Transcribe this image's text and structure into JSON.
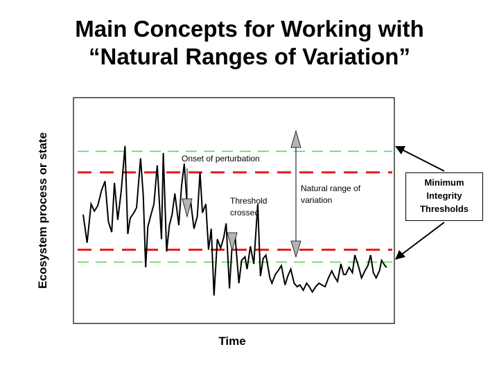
{
  "title": {
    "line1": "Main Concepts for Working with",
    "line2": "“Natural Ranges of Variation”"
  },
  "axes": {
    "ylabel": "Ecosystem process or state",
    "xlabel": "Time"
  },
  "annotations": {
    "onset": "Onset of perturbation",
    "threshold_line1": "Threshold",
    "threshold_line2": "crossed",
    "nrv_line1": "Natural range of",
    "nrv_line2": "variation"
  },
  "callout": {
    "line1": "Minimum",
    "line2": "Integrity",
    "line3": "Thresholds"
  },
  "colors": {
    "threshold_line": "#e8161b",
    "natural_limit_line": "#5fd35f",
    "marker_fill": "#b4b4b4"
  },
  "chart_data": {
    "type": "line",
    "x_range": [
      0,
      100
    ],
    "y_range": [
      0,
      100
    ],
    "limit_lines": {
      "natural_upper": 90,
      "threshold_upper": 78,
      "threshold_lower": 34,
      "natural_lower": 27
    },
    "series": [
      {
        "values": [
          [
            0.0,
            54
          ],
          [
            1.3,
            38
          ],
          [
            2.6,
            60
          ],
          [
            3.7,
            56
          ],
          [
            4.8,
            59
          ],
          [
            6.1,
            68
          ],
          [
            7.2,
            73
          ],
          [
            8.3,
            50
          ],
          [
            9.4,
            44
          ],
          [
            10.3,
            72
          ],
          [
            11.4,
            51
          ],
          [
            12.5,
            67
          ],
          [
            13.8,
            93
          ],
          [
            14.7,
            43
          ],
          [
            15.5,
            52
          ],
          [
            16.7,
            55
          ],
          [
            17.6,
            58
          ],
          [
            18.9,
            86
          ],
          [
            19.8,
            65
          ],
          [
            20.6,
            24
          ],
          [
            21.3,
            47
          ],
          [
            22.2,
            53
          ],
          [
            23.3,
            60
          ],
          [
            24.4,
            82
          ],
          [
            25.8,
            40
          ],
          [
            26.4,
            89
          ],
          [
            27.5,
            33
          ],
          [
            28.4,
            48
          ],
          [
            29.3,
            54
          ],
          [
            30.2,
            66
          ],
          [
            31.5,
            48
          ],
          [
            32.4,
            70
          ],
          [
            33.3,
            83
          ],
          [
            34.4,
            55
          ],
          [
            35.3,
            63
          ],
          [
            36.5,
            46
          ],
          [
            37.6,
            53
          ],
          [
            38.5,
            78
          ],
          [
            39.3,
            55
          ],
          [
            40.4,
            60
          ],
          [
            41.3,
            34
          ],
          [
            42.2,
            46
          ],
          [
            43.1,
            8
          ],
          [
            44.2,
            40
          ],
          [
            45.3,
            35
          ],
          [
            46.3,
            41
          ],
          [
            47.1,
            49
          ],
          [
            48.2,
            12
          ],
          [
            49.1,
            38
          ],
          [
            50.0,
            43
          ],
          [
            51.3,
            15
          ],
          [
            52.2,
            28
          ],
          [
            53.3,
            30
          ],
          [
            54.0,
            23
          ],
          [
            55.1,
            36
          ],
          [
            56.2,
            26
          ],
          [
            57.5,
            60
          ],
          [
            58.4,
            19
          ],
          [
            59.3,
            29
          ],
          [
            60.2,
            31
          ],
          [
            61.5,
            18
          ],
          [
            62.2,
            15
          ],
          [
            63.3,
            20
          ],
          [
            64.2,
            22
          ],
          [
            65.3,
            25
          ],
          [
            66.5,
            14
          ],
          [
            67.4,
            19
          ],
          [
            68.4,
            23
          ],
          [
            69.5,
            15
          ],
          [
            70.5,
            13
          ],
          [
            71.4,
            14
          ],
          [
            72.5,
            11
          ],
          [
            73.6,
            15
          ],
          [
            74.5,
            13
          ],
          [
            75.5,
            10
          ],
          [
            76.6,
            13
          ],
          [
            77.7,
            15
          ],
          [
            78.6,
            14
          ],
          [
            79.7,
            13
          ],
          [
            80.8,
            18
          ],
          [
            81.9,
            22
          ],
          [
            82.7,
            19
          ],
          [
            83.8,
            16
          ],
          [
            84.9,
            26
          ],
          [
            85.8,
            20
          ],
          [
            86.5,
            20
          ],
          [
            87.6,
            24
          ],
          [
            88.7,
            21
          ],
          [
            89.5,
            31
          ],
          [
            90.8,
            24
          ],
          [
            91.7,
            18
          ],
          [
            92.8,
            22
          ],
          [
            93.8,
            25
          ],
          [
            94.7,
            31
          ],
          [
            95.6,
            21
          ],
          [
            96.5,
            18
          ],
          [
            97.6,
            22
          ],
          [
            98.3,
            28
          ],
          [
            99.4,
            25
          ],
          [
            100.0,
            24
          ]
        ]
      }
    ]
  }
}
